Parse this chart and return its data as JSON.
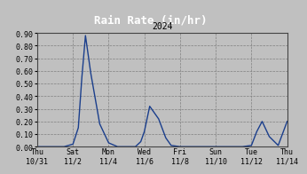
{
  "title": "Rain Rate (in/hr)",
  "subtitle": "2024",
  "bg_color": "#c0c0c0",
  "plot_bg_color": "#c0c0c0",
  "title_bg_color": "#000000",
  "title_text_color": "#ffffff",
  "line_color": "#1a3e8c",
  "line_width": 1.0,
  "ylim": [
    0.0,
    0.9
  ],
  "yticks": [
    0.0,
    0.1,
    0.2,
    0.3,
    0.4,
    0.5,
    0.6,
    0.7,
    0.8,
    0.9
  ],
  "xtick_labels": [
    "Thu\n10/31",
    "Sat\n11/2",
    "Mon\n11/4",
    "Wed\n11/6",
    "Fri\n11/8",
    "Sun\n11/10",
    "Tue\n11/12",
    "Thu\n11/14"
  ],
  "xtick_positions": [
    0,
    2,
    4,
    6,
    8,
    10,
    12,
    14
  ],
  "data_x": [
    0,
    0.5,
    1.0,
    1.5,
    2.0,
    2.3,
    2.5,
    2.7,
    3.0,
    3.5,
    4.0,
    4.5,
    5.0,
    5.5,
    5.8,
    6.0,
    6.3,
    6.8,
    7.2,
    7.5,
    8.0,
    8.5,
    9.0,
    9.5,
    10.0,
    10.5,
    11.0,
    11.5,
    12.0,
    12.3,
    12.6,
    13.0,
    13.5,
    14.0
  ],
  "data_y": [
    0.0,
    0.0,
    0.0,
    0.0,
    0.02,
    0.15,
    0.55,
    0.88,
    0.58,
    0.18,
    0.03,
    0.0,
    0.0,
    0.0,
    0.04,
    0.12,
    0.32,
    0.22,
    0.07,
    0.01,
    0.0,
    0.0,
    0.0,
    0.0,
    0.0,
    0.0,
    0.0,
    0.0,
    0.01,
    0.12,
    0.2,
    0.08,
    0.01,
    0.2
  ],
  "title_fontsize": 9,
  "subtitle_fontsize": 7,
  "tick_fontsize": 6,
  "grid_color": "#808080",
  "grid_linestyle": "--",
  "grid_linewidth": 0.5,
  "title_bar_height": 0.13
}
